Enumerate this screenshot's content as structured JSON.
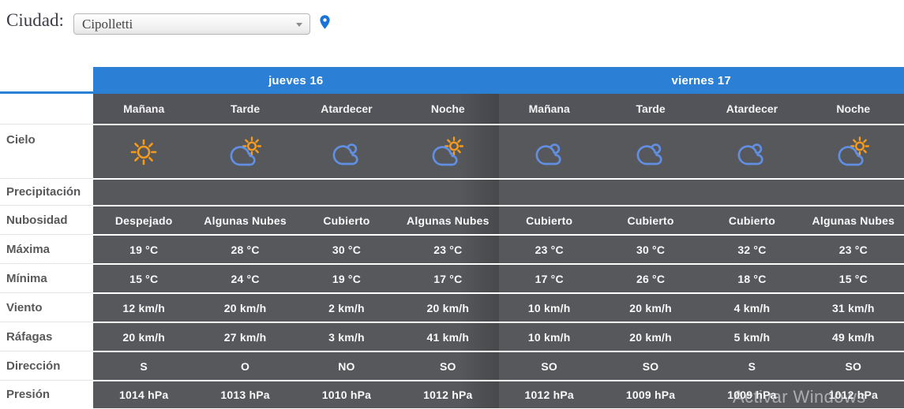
{
  "header": {
    "city_label": "Ciudad:",
    "city_select": {
      "value": "Cipolletti"
    },
    "pin_icon": "location-pin-icon"
  },
  "forecast": {
    "days": [
      {
        "label": "jueves 16"
      },
      {
        "label": "viernes 17"
      }
    ],
    "period_headers": [
      "Mañana",
      "Tarde",
      "Atardecer",
      "Noche",
      "Mañana",
      "Tarde",
      "Atardecer",
      "Noche"
    ],
    "row_labels": {
      "cielo": "Cielo",
      "precipitacion": "Precipitación",
      "nubosidad": "Nubosidad",
      "maxima": "Máxima",
      "minima": "Mínima",
      "viento": "Viento",
      "rafagas": "Ráfagas",
      "direccion": "Dirección",
      "presion": "Presión"
    },
    "cielo_icons": [
      "sun",
      "sun-cloud",
      "cloud",
      "sun-cloud",
      "cloud",
      "cloud",
      "cloud",
      "sun-cloud"
    ],
    "precipitacion": [
      "",
      "",
      "",
      "",
      "",
      "",
      "",
      ""
    ],
    "nubosidad": [
      "Despejado",
      "Algunas Nubes",
      "Cubierto",
      "Algunas Nubes",
      "Cubierto",
      "Cubierto",
      "Cubierto",
      "Algunas Nubes"
    ],
    "maxima": [
      "19 °C",
      "28 °C",
      "30 °C",
      "23 °C",
      "23 °C",
      "30 °C",
      "32 °C",
      "23 °C"
    ],
    "minima": [
      "15 °C",
      "24 °C",
      "19 °C",
      "17 °C",
      "17 °C",
      "26 °C",
      "18 °C",
      "15 °C"
    ],
    "viento": [
      "12 km/h",
      "20 km/h",
      "2 km/h",
      "20 km/h",
      "10 km/h",
      "20 km/h",
      "4 km/h",
      "31 km/h"
    ],
    "rafagas": [
      "20 km/h",
      "27 km/h",
      "3 km/h",
      "41 km/h",
      "10 km/h",
      "20 km/h",
      "5 km/h",
      "49 km/h"
    ],
    "direccion": [
      "S",
      "O",
      "NO",
      "SO",
      "SO",
      "SO",
      "S",
      "SO"
    ],
    "presion": [
      "1014 hPa",
      "1013 hPa",
      "1010 hPa",
      "1012 hPa",
      "1012 hPa",
      "1009 hPa",
      "1009 hPa",
      "1012 hPa"
    ]
  },
  "watermark": "Activar Windows",
  "colors": {
    "day_header_blue": "#2b7fd5",
    "cell_gray": "#57585b",
    "sun_orange": "#F59B1E",
    "cloud_blue": "#618FE4",
    "pin_blue": "#1a73d9"
  }
}
